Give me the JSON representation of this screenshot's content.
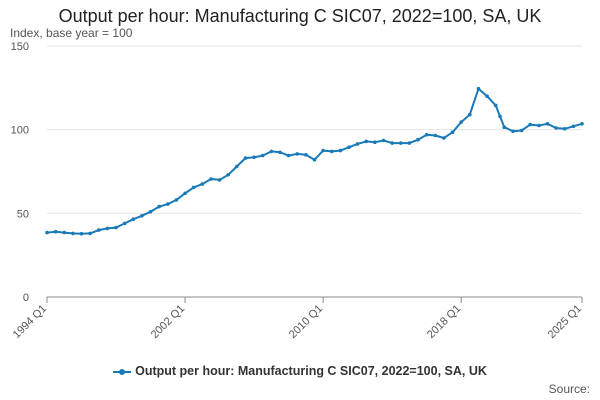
{
  "chart_data": {
    "type": "line",
    "title": "Output per hour: Manufacturing C SIC07, 2022=100, SA, UK",
    "subtitle": "Index, base year = 100",
    "xlabel": "",
    "ylabel": "",
    "x_ticks": [
      "1994 Q1",
      "2002 Q1",
      "2010 Q1",
      "2018 Q1",
      "2025 Q1"
    ],
    "y_ticks": [
      0,
      50,
      100,
      150
    ],
    "ylim": [
      0,
      150
    ],
    "grid": true,
    "legend_position": "bottom",
    "source_label": "Source:",
    "series_color": "#1a7ab8",
    "series": [
      {
        "name": "Output per hour: Manufacturing C SIC07, 2022=100, SA, UK",
        "x": [
          "1994 Q1",
          "1994 Q3",
          "1995 Q1",
          "1995 Q3",
          "1996 Q1",
          "1996 Q3",
          "1997 Q1",
          "1997 Q3",
          "1998 Q1",
          "1998 Q3",
          "1999 Q1",
          "1999 Q3",
          "2000 Q1",
          "2000 Q3",
          "2001 Q1",
          "2001 Q3",
          "2002 Q1",
          "2002 Q3",
          "2003 Q1",
          "2003 Q3",
          "2004 Q1",
          "2004 Q3",
          "2005 Q1",
          "2005 Q3",
          "2006 Q1",
          "2006 Q3",
          "2007 Q1",
          "2007 Q3",
          "2008 Q1",
          "2008 Q3",
          "2009 Q1",
          "2009 Q3",
          "2010 Q1",
          "2010 Q3",
          "2011 Q1",
          "2011 Q3",
          "2012 Q1",
          "2012 Q3",
          "2013 Q1",
          "2013 Q3",
          "2014 Q1",
          "2014 Q3",
          "2015 Q1",
          "2015 Q3",
          "2016 Q1",
          "2016 Q3",
          "2017 Q1",
          "2017 Q3",
          "2018 Q1",
          "2018 Q3",
          "2019 Q1",
          "2019 Q3",
          "2020 Q1",
          "2020 Q2",
          "2020 Q3",
          "2021 Q1",
          "2021 Q3",
          "2022 Q1",
          "2022 Q3",
          "2023 Q1",
          "2023 Q3",
          "2024 Q1",
          "2024 Q3",
          "2025 Q1"
        ],
        "values": [
          38.5,
          39,
          38.5,
          38,
          37.8,
          38,
          40,
          41,
          41.5,
          44,
          46.5,
          48.5,
          51,
          54,
          55.5,
          58,
          62,
          65.5,
          67.5,
          70.5,
          70,
          73,
          78,
          83,
          83.5,
          84.5,
          87,
          86.5,
          84.5,
          85.5,
          85,
          82,
          87.5,
          87,
          87.5,
          89.5,
          91.5,
          93,
          92.5,
          93.5,
          92,
          92,
          92,
          94,
          97,
          96.5,
          95,
          98.5,
          104.5,
          109,
          124.5,
          120,
          114.5,
          108,
          101.5,
          99,
          99.5,
          103,
          102.5,
          103.5,
          101,
          100.5,
          102,
          103.5
        ]
      }
    ]
  }
}
